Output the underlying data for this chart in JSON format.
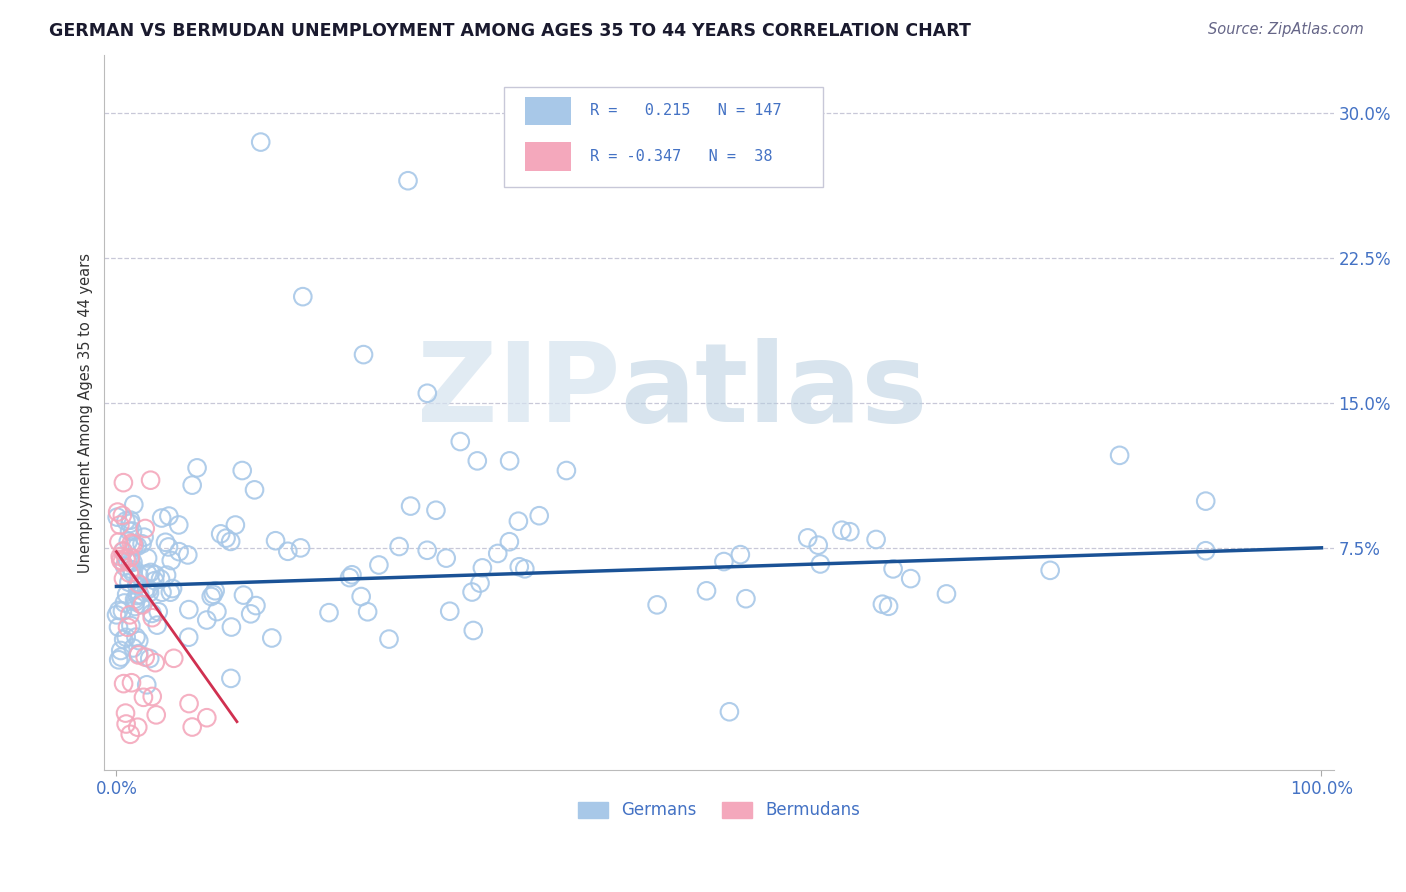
{
  "title": "GERMAN VS BERMUDAN UNEMPLOYMENT AMONG AGES 35 TO 44 YEARS CORRELATION CHART",
  "source": "Source: ZipAtlas.com",
  "ylabel": "Unemployment Among Ages 35 to 44 years",
  "ytick_labels": [
    "7.5%",
    "15.0%",
    "22.5%",
    "30.0%"
  ],
  "ytick_values": [
    0.075,
    0.15,
    0.225,
    0.3
  ],
  "xlim": [
    -0.01,
    1.01
  ],
  "ylim": [
    -0.04,
    0.33
  ],
  "german_R": 0.215,
  "german_N": 147,
  "bermudan_R": -0.347,
  "bermudan_N": 38,
  "german_color": "#a8c8e8",
  "bermudan_color": "#f4a8bc",
  "line_color": "#1a5296",
  "bermudan_line_color": "#d03050",
  "background_color": "#ffffff",
  "grid_color": "#c8c8d8",
  "title_color": "#1a1a2e",
  "source_color": "#666688",
  "axis_label_color": "#4472c4",
  "tick_label_color": "#4472c4",
  "legend_label_color": "#4472c4"
}
